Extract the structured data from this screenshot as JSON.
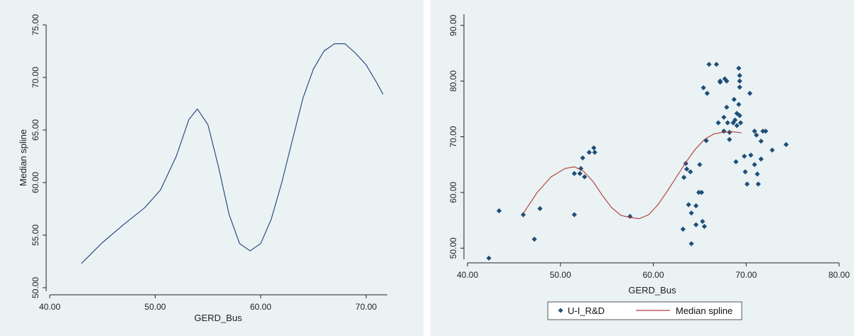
{
  "chart_data": [
    {
      "type": "line",
      "xlabel": "GERD_Bus",
      "ylabel": "Median spline",
      "xlim": [
        40,
        72
      ],
      "ylim": [
        50,
        75
      ],
      "xticks": [
        "40.00",
        "50.00",
        "60.00",
        "70.00"
      ],
      "yticks": [
        "50.00",
        "55.00",
        "60.00",
        "65.00",
        "70.00",
        "75.00"
      ],
      "grid": false,
      "series": [
        {
          "color": "#1f3f7f",
          "x": [
            43.0,
            45.0,
            47.0,
            49.0,
            50.5,
            52.0,
            53.2,
            54.0,
            55.0,
            56.0,
            57.0,
            58.0,
            59.0,
            60.0,
            61.0,
            62.0,
            63.0,
            64.0,
            65.0,
            66.0,
            67.0,
            68.0,
            69.0,
            70.0,
            71.0,
            71.6
          ],
          "y": [
            52.3,
            54.3,
            56.0,
            57.6,
            59.3,
            62.5,
            66.0,
            67.0,
            65.5,
            61.5,
            57.0,
            54.2,
            53.5,
            54.2,
            56.5,
            60.0,
            64.0,
            68.0,
            70.8,
            72.5,
            73.2,
            73.2,
            72.3,
            71.2,
            69.5,
            68.4
          ]
        }
      ]
    },
    {
      "type": "scatter",
      "xlabel": "GERD_Bus",
      "ylabel": "",
      "xlim": [
        40,
        80
      ],
      "ylim": [
        48,
        92
      ],
      "xticks": [
        "40.00",
        "50.00",
        "60.00",
        "70.00",
        "80.00"
      ],
      "yticks": [
        "50.00",
        "60.00",
        "70.00",
        "80.00",
        "90.00"
      ],
      "grid": false,
      "legend_position": "bottom",
      "series": [
        {
          "name": "U-I_R&D",
          "kind": "points",
          "color": "#1f4e79",
          "points": [
            [
              42.3,
              48.2
            ],
            [
              43.4,
              56.7
            ],
            [
              46.0,
              56.0
            ],
            [
              47.2,
              51.6
            ],
            [
              47.8,
              57.1
            ],
            [
              51.5,
              56.0
            ],
            [
              51.5,
              63.4
            ],
            [
              52.2,
              64.3
            ],
            [
              52.1,
              63.4
            ],
            [
              52.4,
              66.2
            ],
            [
              52.6,
              62.8
            ],
            [
              53.1,
              67.2
            ],
            [
              53.7,
              67.2
            ],
            [
              53.6,
              68.0
            ],
            [
              57.5,
              55.7
            ],
            [
              63.2,
              53.4
            ],
            [
              63.3,
              62.7
            ],
            [
              63.5,
              65.2
            ],
            [
              63.6,
              64.2
            ],
            [
              64.0,
              63.7
            ],
            [
              63.8,
              57.8
            ],
            [
              64.1,
              56.3
            ],
            [
              64.1,
              50.8
            ],
            [
              64.6,
              57.6
            ],
            [
              64.6,
              54.2
            ],
            [
              64.9,
              60.0
            ],
            [
              65.2,
              60.0
            ],
            [
              65.0,
              65.0
            ],
            [
              65.3,
              54.8
            ],
            [
              65.5,
              53.9
            ],
            [
              65.4,
              78.8
            ],
            [
              65.8,
              77.8
            ],
            [
              65.7,
              69.3
            ],
            [
              66.0,
              83.0
            ],
            [
              66.8,
              83.0
            ],
            [
              67.0,
              72.5
            ],
            [
              67.2,
              80.0
            ],
            [
              67.2,
              79.8
            ],
            [
              67.7,
              80.4
            ],
            [
              67.9,
              80.0
            ],
            [
              67.6,
              73.5
            ],
            [
              67.6,
              71.0
            ],
            [
              67.9,
              75.3
            ],
            [
              68.2,
              70.8
            ],
            [
              68.2,
              69.5
            ],
            [
              68.0,
              72.5
            ],
            [
              68.6,
              72.5
            ],
            [
              68.7,
              76.7
            ],
            [
              69.0,
              74.2
            ],
            [
              68.8,
              73.0
            ],
            [
              69.0,
              72.0
            ],
            [
              68.9,
              65.5
            ],
            [
              69.2,
              82.3
            ],
            [
              69.3,
              81.0
            ],
            [
              69.3,
              80.0
            ],
            [
              69.3,
              78.9
            ],
            [
              69.2,
              75.8
            ],
            [
              69.3,
              73.8
            ],
            [
              69.4,
              72.5
            ],
            [
              69.8,
              66.5
            ],
            [
              69.9,
              63.7
            ],
            [
              70.1,
              61.5
            ],
            [
              70.4,
              77.8
            ],
            [
              70.5,
              66.7
            ],
            [
              70.9,
              65.0
            ],
            [
              70.9,
              71.0
            ],
            [
              71.1,
              70.3
            ],
            [
              71.2,
              63.3
            ],
            [
              71.3,
              61.5
            ],
            [
              71.6,
              69.2
            ],
            [
              71.6,
              66.0
            ],
            [
              71.8,
              71.0
            ],
            [
              72.1,
              71.0
            ],
            [
              72.8,
              67.6
            ],
            [
              74.3,
              68.6
            ]
          ]
        },
        {
          "name": "Median spline",
          "kind": "line",
          "color": "#b03a3a",
          "x": [
            46.0,
            47.5,
            49.0,
            50.5,
            51.5,
            52.5,
            53.5,
            54.5,
            55.5,
            56.5,
            57.5,
            58.5,
            59.5,
            60.5,
            61.5,
            62.5,
            63.5,
            64.5,
            65.5,
            66.5,
            67.5,
            68.5,
            69.5
          ],
          "y": [
            56.2,
            60.0,
            62.8,
            64.3,
            64.6,
            63.8,
            62.0,
            59.5,
            57.3,
            55.9,
            55.5,
            55.3,
            56.0,
            57.8,
            60.2,
            62.8,
            65.4,
            67.7,
            69.5,
            70.5,
            70.8,
            70.9,
            70.7
          ]
        }
      ]
    }
  ]
}
